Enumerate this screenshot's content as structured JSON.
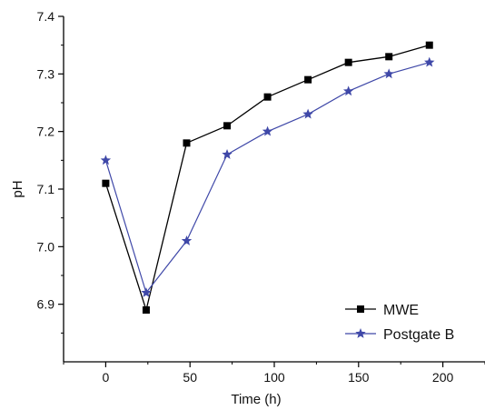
{
  "chart_data": {
    "type": "line",
    "title": "",
    "xlabel": "Time (h)",
    "ylabel": "pH",
    "xlim": [
      -25,
      225
    ],
    "ylim": [
      6.8,
      7.4
    ],
    "x_ticks": [
      0,
      50,
      100,
      150,
      200
    ],
    "x_tick_labels": [
      "0",
      "50",
      "100",
      "150",
      "200"
    ],
    "y_ticks": [
      6.9,
      7.0,
      7.1,
      7.2,
      7.3,
      7.4
    ],
    "y_tick_labels": [
      "6.9",
      "7.0",
      "7.1",
      "7.2",
      "7.3",
      "7.4"
    ],
    "grid": false,
    "legend_position": "bottom-right",
    "x": [
      0,
      24,
      48,
      72,
      96,
      120,
      144,
      168,
      192
    ],
    "series": [
      {
        "name": "MWE",
        "values": [
          7.11,
          6.89,
          7.18,
          7.21,
          7.26,
          7.29,
          7.32,
          7.33,
          7.35
        ],
        "marker": "square",
        "color": "#000000"
      },
      {
        "name": "Postgate B",
        "values": [
          7.15,
          6.92,
          7.01,
          7.16,
          7.2,
          7.23,
          7.27,
          7.3,
          7.32
        ],
        "marker": "star",
        "color": "#3f48a8"
      }
    ]
  }
}
